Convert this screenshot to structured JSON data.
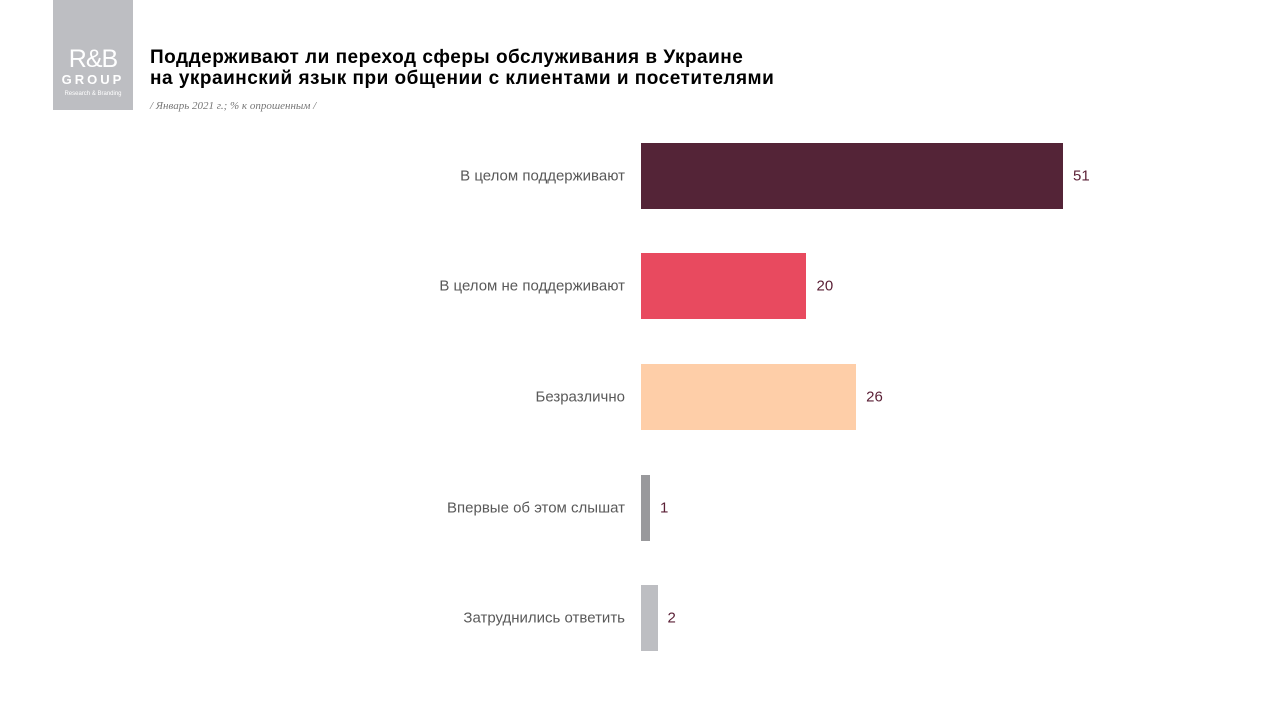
{
  "logo": {
    "text": "R&B",
    "group": "GROUP",
    "tagline": "Research & Branding"
  },
  "chart_data": {
    "type": "bar",
    "orientation": "horizontal",
    "title": "Поддерживают ли переход сферы обслуживания в Украине на украинский язык при общении с клиентами и посетителями",
    "title_lines": [
      "Поддерживают ли переход сферы обслуживания в Украине",
      "на украинский язык при общении с клиентами и посетителями"
    ],
    "subtitle": "/ Январь 2021 г.; % к опрошенным /",
    "categories": [
      "В целом поддерживают",
      "В целом не поддерживают",
      "Безразлично",
      "Впервые об этом слышат",
      "Затруднились  ответить"
    ],
    "values": [
      51,
      20,
      26,
      1,
      2
    ],
    "colors": [
      "#542437",
      "#e84a5f",
      "#fecea8",
      "#99999c",
      "#bdbec2"
    ],
    "xlim": [
      0,
      51
    ],
    "grid": false,
    "legend": "none"
  }
}
